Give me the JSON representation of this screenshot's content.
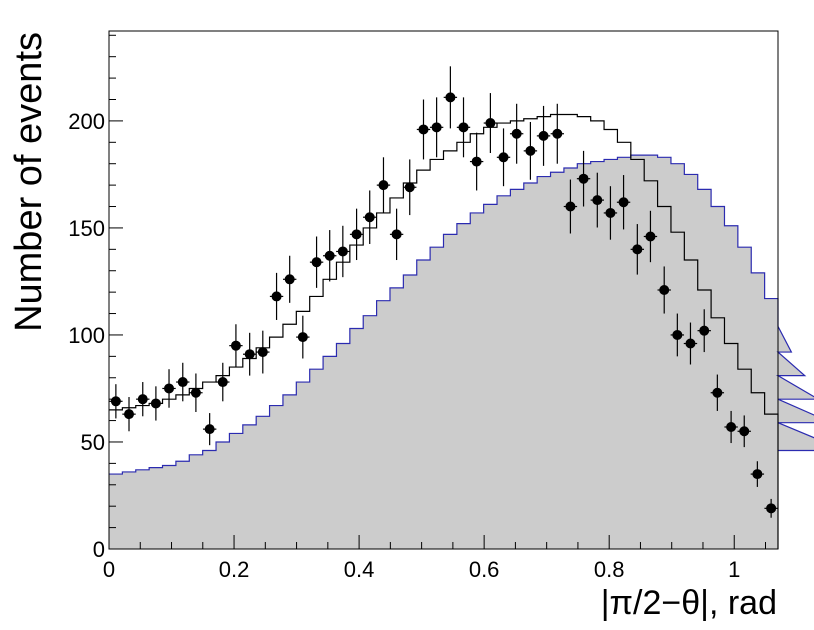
{
  "chart_data": {
    "type": "histogram",
    "xlabel": "|π/2−θ|, rad",
    "ylabel": "Number of events",
    "xlim": [
      0,
      1.07
    ],
    "ylim": [
      0,
      242
    ],
    "x_ticks": [
      0,
      0.2,
      0.4,
      0.6,
      0.8,
      1
    ],
    "x_tick_labels": [
      "0",
      "0.2",
      "0.4",
      "0.6",
      "0.8",
      "1"
    ],
    "y_ticks": [
      0,
      50,
      100,
      150,
      200
    ],
    "y_tick_labels": [
      "0",
      "50",
      "100",
      "150",
      "200"
    ],
    "bin_width": 0.0214,
    "series": [
      {
        "kind": "filled-histogram",
        "fill_color": "#cccccc",
        "line_color": "#2b2bb0",
        "values": [
          35,
          36,
          37,
          38,
          39,
          41,
          44,
          46,
          50,
          54,
          58,
          62,
          67,
          72,
          78,
          84,
          90,
          96,
          103,
          109,
          116,
          122,
          128,
          135,
          141,
          147,
          152,
          157,
          161,
          165,
          168,
          171,
          174,
          176,
          178,
          180,
          181,
          182,
          183,
          184,
          184,
          183,
          180,
          175,
          168,
          160,
          151,
          141,
          129,
          117,
          104,
          92,
          81,
          70,
          59,
          46
        ]
      },
      {
        "kind": "step-histogram",
        "line_color": "#000000",
        "values": [
          65,
          66,
          67,
          68,
          70,
          72,
          75,
          78,
          81,
          85,
          89,
          94,
          99,
          105,
          111,
          118,
          126,
          134,
          142,
          150,
          157,
          164,
          171,
          177,
          182,
          186,
          190,
          194,
          197,
          199,
          200,
          201,
          202,
          203,
          203,
          202,
          200,
          196,
          190,
          182,
          172,
          160,
          148,
          135,
          121,
          108,
          96,
          84,
          73,
          63,
          52
        ]
      },
      {
        "kind": "data-points",
        "marker_color": "#000000",
        "x": [
          0.011,
          0.032,
          0.054,
          0.075,
          0.096,
          0.118,
          0.139,
          0.161,
          0.182,
          0.203,
          0.225,
          0.246,
          0.268,
          0.289,
          0.31,
          0.332,
          0.353,
          0.374,
          0.396,
          0.417,
          0.439,
          0.46,
          0.481,
          0.503,
          0.524,
          0.546,
          0.567,
          0.588,
          0.61,
          0.631,
          0.652,
          0.674,
          0.695,
          0.717,
          0.738,
          0.759,
          0.781,
          0.802,
          0.823,
          0.845,
          0.866,
          0.888,
          0.909,
          0.93,
          0.952,
          0.973,
          0.995,
          1.016,
          1.037,
          1.059
        ],
        "y": [
          69,
          63,
          70,
          68,
          75,
          78,
          73,
          56,
          78,
          95,
          91,
          92,
          118,
          126,
          99,
          134,
          137,
          139,
          147,
          155,
          170,
          147,
          169,
          196,
          197,
          211,
          197,
          181,
          199,
          183,
          194,
          186,
          193,
          194,
          160,
          173,
          163,
          157,
          162,
          140,
          146,
          121,
          100,
          96,
          102,
          73,
          57,
          55,
          35,
          19
        ],
        "yerr": [
          8,
          8,
          8,
          8,
          9,
          9,
          9,
          7.5,
          9,
          10,
          10,
          10,
          11,
          11,
          10,
          12,
          12,
          12,
          12,
          12.5,
          13,
          12,
          13,
          14,
          14,
          14.5,
          14,
          13.5,
          14,
          13.5,
          14,
          13.5,
          14,
          14,
          12.6,
          13,
          12.8,
          12.5,
          12.7,
          11.8,
          12,
          11,
          10,
          9.8,
          10,
          8.5,
          7.5,
          7.4,
          6,
          4.4
        ]
      }
    ]
  }
}
